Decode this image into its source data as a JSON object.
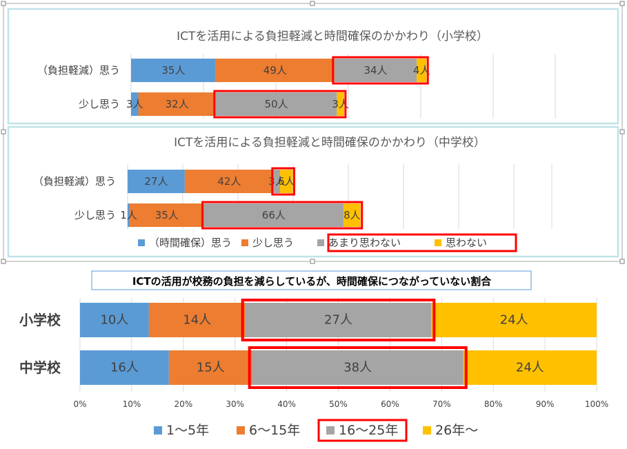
{
  "colors": {
    "blue": "#5b9bd5",
    "orange": "#ed7d31",
    "gray": "#a5a5a5",
    "yellow": "#ffc000",
    "highlight": "#ff0000",
    "frame": "#bfe3e8"
  },
  "chart_data": [
    {
      "type": "bar",
      "orientation": "horizontal",
      "stacked": true,
      "title": "ICTを活用による負担軽減と時間確保のかかわり（小学校）",
      "categories": [
        "（負担軽減）思う",
        "少し思う"
      ],
      "series": [
        {
          "name": "（時間確保）思う",
          "color": "#5b9bd5",
          "values": [
            35,
            3
          ],
          "labels": [
            "35人",
            "3人"
          ]
        },
        {
          "name": "少し思う",
          "color": "#ed7d31",
          "values": [
            49,
            32
          ],
          "labels": [
            "49人",
            "32人"
          ]
        },
        {
          "name": "あまり思わない",
          "color": "#a5a5a5",
          "values": [
            34,
            50
          ],
          "labels": [
            "34人",
            "50人"
          ]
        },
        {
          "name": "思わない",
          "color": "#ffc000",
          "values": [
            4,
            3
          ],
          "labels": [
            "4人",
            "3人"
          ]
        }
      ],
      "legend": "shared-bottom"
    },
    {
      "type": "bar",
      "orientation": "horizontal",
      "stacked": true,
      "title": "ICTを活用による負担軽減と時間確保のかかわり（中学校）",
      "categories": [
        "（負担軽減）思う",
        "少し思う"
      ],
      "series": [
        {
          "name": "（時間確保）思う",
          "color": "#5b9bd5",
          "values": [
            27,
            1
          ],
          "labels": [
            "27人",
            "1人"
          ]
        },
        {
          "name": "少し思う",
          "color": "#ed7d31",
          "values": [
            42,
            35
          ],
          "labels": [
            "42人",
            "35人"
          ]
        },
        {
          "name": "あまり思わない",
          "color": "#a5a5a5",
          "values": [
            3,
            66
          ],
          "labels": [
            "3人",
            "66人"
          ]
        },
        {
          "name": "思わない",
          "color": "#ffc000",
          "values": [
            6,
            8
          ],
          "labels": [
            "6人",
            "8人"
          ]
        }
      ],
      "legend": [
        "（時間確保）思う",
        "少し思う",
        "あまり思わない",
        "思わない"
      ],
      "legend_placement": "bottom"
    },
    {
      "type": "bar",
      "orientation": "horizontal",
      "stacked": true,
      "percent": true,
      "title": "ICTの活用が校務の負担を減らしているが、時間確保につながっていない割合",
      "categories": [
        "小学校",
        "中学校"
      ],
      "series": [
        {
          "name": "1～5年",
          "color": "#5b9bd5",
          "values": [
            10,
            16
          ],
          "labels": [
            "10人",
            "16人"
          ]
        },
        {
          "name": "6～15年",
          "color": "#ed7d31",
          "values": [
            14,
            15
          ],
          "labels": [
            "14人",
            "15人"
          ]
        },
        {
          "name": "16～25年",
          "color": "#a5a5a5",
          "values": [
            27,
            38
          ],
          "labels": [
            "27人",
            "38人"
          ]
        },
        {
          "name": "26年～",
          "color": "#ffc000",
          "values": [
            24,
            24
          ],
          "labels": [
            "24人",
            "24人"
          ]
        }
      ],
      "xticks": [
        "0%",
        "10%",
        "20%",
        "30%",
        "40%",
        "50%",
        "60%",
        "70%",
        "80%",
        "90%",
        "100%"
      ],
      "xlim": [
        0,
        100
      ],
      "grid": true,
      "legend": [
        "1～5年",
        "6～15年",
        "16～25年",
        "26年～"
      ],
      "legend_placement": "bottom"
    }
  ]
}
